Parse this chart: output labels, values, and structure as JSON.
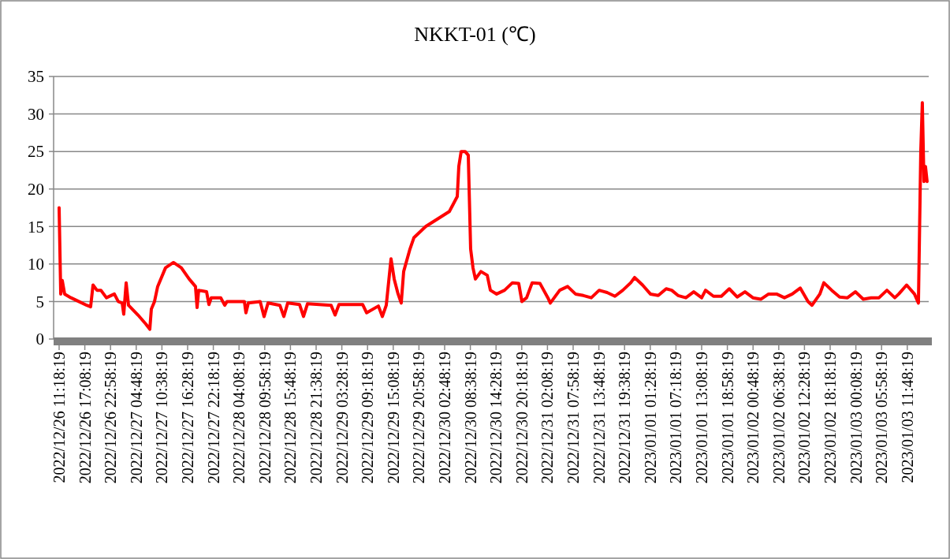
{
  "chart_data": {
    "type": "line",
    "title": "NKKT-01 (℃)",
    "xlim": [
      "2022-12-26T10:03",
      "2023-01-03T16:40"
    ],
    "xticks": [
      {
        "value": "2022-12-26T11:18",
        "label": "2022/12/26 11:18:19"
      },
      {
        "value": "2022-12-26T17:08",
        "label": "2022/12/26 17:08:19"
      },
      {
        "value": "2022-12-26T22:58",
        "label": "2022/12/26 22:58:19"
      },
      {
        "value": "2022-12-27T04:48",
        "label": "2022/12/27 04:48:19"
      },
      {
        "value": "2022-12-27T10:38",
        "label": "2022/12/27 10:38:19"
      },
      {
        "value": "2022-12-27T16:28",
        "label": "2022/12/27 16:28:19"
      },
      {
        "value": "2022-12-27T22:18",
        "label": "2022/12/27 22:18:19"
      },
      {
        "value": "2022-12-28T04:08",
        "label": "2022/12/28 04:08:19"
      },
      {
        "value": "2022-12-28T09:58",
        "label": "2022/12/28 09:58:19"
      },
      {
        "value": "2022-12-28T15:48",
        "label": "2022/12/28 15:48:19"
      },
      {
        "value": "2022-12-28T21:38",
        "label": "2022/12/28 21:38:19"
      },
      {
        "value": "2022-12-29T03:28",
        "label": "2022/12/29 03:28:19"
      },
      {
        "value": "2022-12-29T09:18",
        "label": "2022/12/29 09:18:19"
      },
      {
        "value": "2022-12-29T15:08",
        "label": "2022/12/29 15:08:19"
      },
      {
        "value": "2022-12-29T20:58",
        "label": "2022/12/29 20:58:19"
      },
      {
        "value": "2022-12-30T02:48",
        "label": "2022/12/30 02:48:19"
      },
      {
        "value": "2022-12-30T08:38",
        "label": "2022/12/30 08:38:19"
      },
      {
        "value": "2022-12-30T14:28",
        "label": "2022/12/30 14:28:19"
      },
      {
        "value": "2022-12-30T20:18",
        "label": "2022/12/30 20:18:19"
      },
      {
        "value": "2022-12-31T02:08",
        "label": "2022/12/31 02:08:19"
      },
      {
        "value": "2022-12-31T07:58",
        "label": "2022/12/31 07:58:19"
      },
      {
        "value": "2022-12-31T13:48",
        "label": "2022/12/31 13:48:19"
      },
      {
        "value": "2022-12-31T19:38",
        "label": "2022/12/31 19:38:19"
      },
      {
        "value": "2023-01-01T01:28",
        "label": "2023/01/01 01:28:19"
      },
      {
        "value": "2023-01-01T07:18",
        "label": "2023/01/01 07:18:19"
      },
      {
        "value": "2023-01-01T13:08",
        "label": "2023/01/01 13:08:19"
      },
      {
        "value": "2023-01-01T18:58",
        "label": "2023/01/01 18:58:19"
      },
      {
        "value": "2023-01-02T00:48",
        "label": "2023/01/02 00:48:19"
      },
      {
        "value": "2023-01-02T06:38",
        "label": "2023/01/02 06:38:19"
      },
      {
        "value": "2023-01-02T12:28",
        "label": "2023/01/02 12:28:19"
      },
      {
        "value": "2023-01-02T18:18",
        "label": "2023/01/02 18:18:19"
      },
      {
        "value": "2023-01-03T00:08",
        "label": "2023/01/03 00:08:19"
      },
      {
        "value": "2023-01-03T05:58",
        "label": "2023/01/03 05:58:19"
      },
      {
        "value": "2023-01-03T11:48",
        "label": "2023/01/03 11:48:19"
      }
    ],
    "ylim": [
      0,
      35
    ],
    "yticks": [
      0,
      5,
      10,
      15,
      20,
      25,
      30,
      35
    ],
    "grid": "y",
    "series": [
      {
        "color": "#ff0000",
        "x": [
          "2022-12-26T11:18",
          "2022-12-26T11:40",
          "2022-12-26T12:01",
          "2022-12-26T12:33",
          "2022-12-26T13:59",
          "2022-12-26T15:46",
          "2022-12-26T17:34",
          "2022-12-26T18:27",
          "2022-12-26T19:00",
          "2022-12-26T19:53",
          "2022-12-26T20:47",
          "2022-12-26T22:02",
          "2022-12-26T23:50",
          "2022-12-27T00:43",
          "2022-12-27T01:37",
          "2022-12-27T01:58",
          "2022-12-27T02:31",
          "2022-12-27T03:03",
          "2022-12-27T05:12",
          "2022-12-27T06:59",
          "2022-12-27T07:53",
          "2022-12-27T08:14",
          "2022-12-27T08:57",
          "2022-12-27T09:40",
          "2022-12-27T11:27",
          "2022-12-27T13:15",
          "2022-12-27T15:02",
          "2022-12-27T16:49",
          "2022-12-27T18:15",
          "2022-12-27T18:37",
          "2022-12-27T18:58",
          "2022-12-27T20:46",
          "2022-12-27T21:18",
          "2022-12-27T21:50",
          "2022-12-27T23:59",
          "2022-12-28T00:53",
          "2022-12-28T01:25",
          "2022-12-28T05:21",
          "2022-12-28T05:42",
          "2022-12-28T06:15",
          "2022-12-28T08:56",
          "2022-12-28T09:49",
          "2022-12-28T10:43",
          "2022-12-28T13:24",
          "2022-12-28T14:18",
          "2022-12-28T15:11",
          "2022-12-28T17:52",
          "2022-12-28T18:46",
          "2022-12-28T19:40",
          "2022-12-29T01:02",
          "2022-12-29T01:56",
          "2022-12-29T02:49",
          "2022-12-29T08:11",
          "2022-12-29T09:05",
          "2022-12-29T11:46",
          "2022-12-29T12:40",
          "2022-12-29T13:33",
          "2022-12-29T14:38",
          "2022-12-29T15:21",
          "2022-12-29T16:14",
          "2022-12-29T16:57",
          "2022-12-29T17:30",
          "2022-12-29T18:56",
          "2022-12-29T19:49",
          "2022-12-29T22:30",
          "2022-12-30T01:11",
          "2022-12-30T03:52",
          "2022-12-30T04:46",
          "2022-12-30T05:40",
          "2022-12-30T06:01",
          "2022-12-30T06:33",
          "2022-12-30T07:27",
          "2022-12-30T08:10",
          "2022-12-30T08:42",
          "2022-12-30T09:14",
          "2022-12-30T09:47",
          "2022-12-30T11:02",
          "2022-12-30T12:28",
          "2022-12-30T13:11",
          "2022-12-30T14:36",
          "2022-12-30T16:24",
          "2022-12-30T18:11",
          "2022-12-30T19:37",
          "2022-12-30T20:20",
          "2022-12-30T21:24",
          "2022-12-30T22:40",
          "2022-12-31T00:27",
          "2022-12-31T02:14",
          "2022-12-31T02:47",
          "2022-12-31T04:55",
          "2022-12-31T06:43",
          "2022-12-31T08:30",
          "2022-12-31T10:17",
          "2022-12-31T12:05",
          "2022-12-31T13:52",
          "2022-12-31T15:40",
          "2022-12-31T17:27",
          "2022-12-31T19:14",
          "2022-12-31T21:02",
          "2022-12-31T21:55",
          "2022-12-31T23:43",
          "2023-01-01T01:30",
          "2023-01-01T03:17",
          "2023-01-01T05:05",
          "2023-01-01T06:20",
          "2023-01-01T07:46",
          "2023-01-01T09:33",
          "2023-01-01T11:20",
          "2023-01-01T13:08",
          "2023-01-01T14:01",
          "2023-01-01T15:49",
          "2023-01-01T17:36",
          "2023-01-01T19:24",
          "2023-01-01T21:11",
          "2023-01-01T22:58",
          "2023-01-02T00:46",
          "2023-01-02T02:33",
          "2023-01-02T04:20",
          "2023-01-02T06:08",
          "2023-01-02T07:55",
          "2023-01-02T09:42",
          "2023-01-02T11:30",
          "2023-01-02T13:17",
          "2023-01-02T14:11",
          "2023-01-02T15:58",
          "2023-01-02T16:52",
          "2023-01-02T18:39",
          "2023-01-02T20:27",
          "2023-01-02T22:14",
          "2023-01-03T00:01",
          "2023-01-03T01:49",
          "2023-01-03T03:36",
          "2023-01-03T05:23",
          "2023-01-03T07:11",
          "2023-01-03T08:58",
          "2023-01-03T09:52",
          "2023-01-03T11:39",
          "2023-01-03T13:26",
          "2023-01-03T14:20",
          "2023-01-03T14:52",
          "2023-01-03T15:13",
          "2023-01-03T15:35",
          "2023-01-03T15:56",
          "2023-01-03T16:18"
        ],
        "values": [
          17.5,
          6,
          7.8,
          6,
          5.5,
          5,
          4.5,
          4.3,
          7.2,
          6.5,
          6.5,
          5.5,
          6,
          5,
          4.8,
          3.3,
          7.5,
          4.5,
          3.2,
          2,
          1.3,
          4,
          5,
          7,
          9.5,
          10.2,
          9.5,
          8,
          7,
          4.2,
          6.5,
          6.3,
          4.6,
          5.5,
          5.5,
          4.5,
          5,
          5,
          3.5,
          4.8,
          5,
          3,
          4.8,
          4.5,
          3,
          4.8,
          4.6,
          3,
          4.7,
          4.5,
          3.2,
          4.6,
          4.6,
          3.5,
          4.4,
          3,
          4.5,
          10.7,
          8,
          6,
          4.8,
          9,
          12,
          13.5,
          15,
          16,
          17,
          18,
          19,
          23,
          25,
          25,
          24.5,
          12,
          9.5,
          8,
          9,
          8.5,
          6.5,
          6,
          6.5,
          7.5,
          7.4,
          5,
          5.5,
          7.5,
          7.4,
          5.5,
          4.8,
          6.5,
          7,
          6,
          5.8,
          5.5,
          6.5,
          6.2,
          5.7,
          6.5,
          7.5,
          8.2,
          7.2,
          6,
          5.8,
          6.7,
          6.5,
          5.8,
          5.5,
          6.3,
          5.5,
          6.5,
          5.7,
          5.7,
          6.7,
          5.6,
          6.3,
          5.5,
          5.3,
          6,
          6,
          5.5,
          6,
          6.8,
          5,
          4.5,
          6,
          7.5,
          6.5,
          5.6,
          5.5,
          6.3,
          5.3,
          5.5,
          5.5,
          6.5,
          5.5,
          6,
          7.2,
          6,
          4.8,
          25,
          31.5,
          21,
          23,
          21
        ]
      }
    ]
  }
}
